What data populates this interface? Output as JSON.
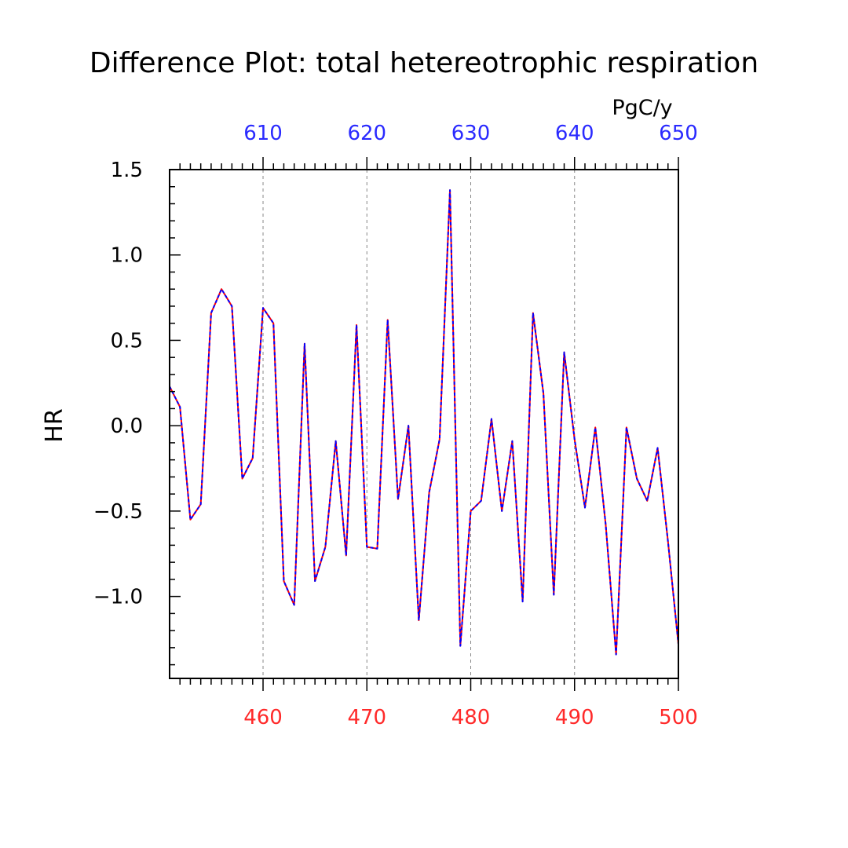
{
  "chart_data": {
    "type": "line",
    "title": "Difference Plot: total hetereotrophic respiration",
    "ylabel": "HR",
    "units": "PgC/y",
    "xlim": [
      451,
      500
    ],
    "ylim": [
      -1.48,
      1.5
    ],
    "y_ticks": [
      "1.5",
      "1.0",
      "0.5",
      "0.0",
      "−0.5",
      "−1.0"
    ],
    "y_tick_values": [
      1.5,
      1.0,
      0.5,
      0.0,
      -0.5,
      -1.0
    ],
    "x_bottom_ticks": [
      460,
      470,
      480,
      490,
      500
    ],
    "x_top_ticks": [
      610,
      620,
      630,
      640,
      650
    ],
    "x_top_offset": 150,
    "grid": "dashed vertical at major x ticks",
    "colors": {
      "bottom_axis": "#ff2a2a",
      "top_axis": "#2a2aff",
      "series_a": "#ff0000",
      "series_b": "#0000ff",
      "frame": "#000000",
      "grid": "#888888"
    },
    "series": [
      {
        "style": "solid-red",
        "x": [
          451,
          452,
          453,
          454,
          455,
          456,
          457,
          458,
          459,
          460,
          461,
          462,
          463,
          464,
          465,
          466,
          467,
          468,
          469,
          470,
          471,
          472,
          473,
          474,
          475,
          476,
          477,
          478,
          479,
          480,
          481,
          482,
          483,
          484,
          485,
          486,
          487,
          488,
          489,
          490,
          491,
          492,
          493,
          494,
          495,
          496,
          497,
          498,
          499,
          500
        ],
        "values": [
          0.23,
          0.11,
          -0.55,
          -0.46,
          0.66,
          0.8,
          0.7,
          -0.31,
          -0.19,
          0.69,
          0.6,
          -0.91,
          -1.05,
          0.48,
          -0.91,
          -0.71,
          -0.09,
          -0.76,
          0.59,
          -0.71,
          -0.72,
          0.62,
          -0.43,
          0.0,
          -1.14,
          -0.39,
          -0.08,
          1.38,
          -1.29,
          -0.5,
          -0.44,
          0.04,
          -0.5,
          -0.09,
          -1.03,
          0.66,
          0.19,
          -0.99,
          0.43,
          -0.08,
          -0.48,
          -0.01,
          -0.58,
          -1.34,
          -0.01,
          -0.31,
          -0.44,
          -0.13,
          -0.68,
          -1.28
        ]
      },
      {
        "style": "dashed-blue",
        "x": [
          451,
          452,
          453,
          454,
          455,
          456,
          457,
          458,
          459,
          460,
          461,
          462,
          463,
          464,
          465,
          466,
          467,
          468,
          469,
          470,
          471,
          472,
          473,
          474,
          475,
          476,
          477,
          478,
          479,
          480,
          481,
          482,
          483,
          484,
          485,
          486,
          487,
          488,
          489,
          490,
          491,
          492,
          493,
          494,
          495,
          496,
          497,
          498,
          499,
          500
        ],
        "values": [
          0.23,
          0.11,
          -0.55,
          -0.46,
          0.66,
          0.8,
          0.7,
          -0.31,
          -0.19,
          0.69,
          0.6,
          -0.91,
          -1.05,
          0.48,
          -0.91,
          -0.71,
          -0.09,
          -0.76,
          0.59,
          -0.71,
          -0.72,
          0.62,
          -0.43,
          0.0,
          -1.14,
          -0.39,
          -0.08,
          1.38,
          -1.29,
          -0.5,
          -0.44,
          0.04,
          -0.5,
          -0.09,
          -1.03,
          0.66,
          0.19,
          -0.99,
          0.43,
          -0.08,
          -0.48,
          -0.01,
          -0.58,
          -1.34,
          -0.01,
          -0.31,
          -0.44,
          -0.13,
          -0.68,
          -1.28
        ]
      }
    ]
  }
}
